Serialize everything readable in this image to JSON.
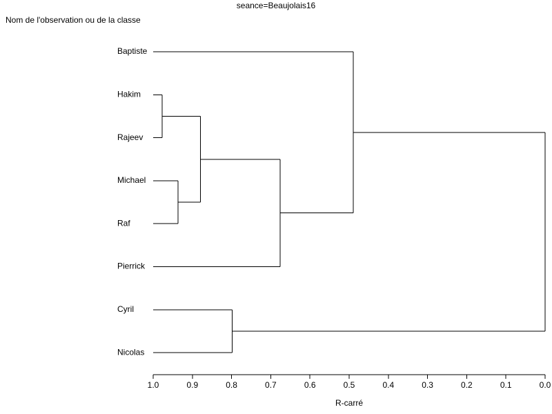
{
  "chart_data": {
    "type": "dendrogram",
    "title": "seance=Beaujolais16",
    "y_label": "Nom de l'observation ou de la classe",
    "x_label": "R-carré",
    "xlim": [
      1.0,
      0.0
    ],
    "xticks": [
      {
        "value": 1.0,
        "label": "1.0"
      },
      0.9,
      0.8,
      0.7,
      0.6,
      0.5,
      0.4,
      0.3,
      0.2,
      0.1,
      {
        "value": 0.0,
        "label": "0.0"
      }
    ],
    "color": "#000000",
    "tree": {
      "height": 0.0,
      "children": [
        {
          "height": 0.489,
          "children": [
            {
              "name": "Baptiste"
            },
            {
              "height": 0.676,
              "children": [
                {
                  "height": 0.879,
                  "children": [
                    {
                      "height": 0.977,
                      "children": [
                        {
                          "name": "Hakim"
                        },
                        {
                          "name": "Rajeev"
                        }
                      ]
                    },
                    {
                      "height": 0.937,
                      "children": [
                        {
                          "name": "Michael"
                        },
                        {
                          "name": "Raf"
                        }
                      ]
                    }
                  ]
                },
                {
                  "name": "Pierrick"
                }
              ]
            }
          ]
        },
        {
          "height": 0.798,
          "children": [
            {
              "name": "Cyril"
            },
            {
              "name": "Nicolas"
            }
          ]
        }
      ]
    }
  }
}
